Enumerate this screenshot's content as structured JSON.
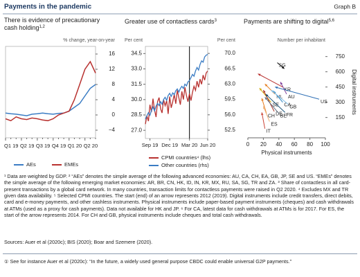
{
  "header": {
    "title": "Payments in the pandemic",
    "label": "Graph B"
  },
  "chart_data": [
    {
      "type": "line",
      "title": [
        "There is evidence of precautionary",
        "cash holding"
      ],
      "title_sup": "1,2",
      "subtitle": "% change, year-on-year",
      "categories": [
        "Q1 19",
        null,
        null,
        "Q2 19",
        null,
        null,
        "Q3 19",
        null,
        null,
        "Q4 19",
        null,
        null,
        "Q1 20",
        null,
        null,
        "Q2 20",
        null,
        null
      ],
      "series": [
        {
          "name": "AEs",
          "color": "#3a7cc4",
          "values": [
            0.5,
            0.3,
            0.2,
            0,
            -0.2,
            0.2,
            0.3,
            0.5,
            0.3,
            0.2,
            0.4,
            0.5,
            1,
            2,
            3,
            5,
            7,
            8
          ]
        },
        {
          "name": "EMEs",
          "color": "#b8312f",
          "values": [
            -1,
            -1.5,
            -0.5,
            -1,
            -1.2,
            -0.8,
            -1,
            -1.3,
            -1.5,
            -1,
            0,
            0.5,
            1,
            4,
            8,
            12,
            14,
            11
          ]
        }
      ],
      "ylim": [
        -6,
        18
      ],
      "yticks": [
        {
          "value": -4,
          "label": "−4"
        },
        0,
        4,
        8,
        12,
        16
      ]
    },
    {
      "type": "dual-line",
      "title": [
        "Greater use of contactless cards"
      ],
      "title_sup": "3",
      "ylabel": "Per cent",
      "y2label": "Per cent",
      "categories": [
        null,
        null,
        null,
        "Sep 19",
        null,
        null,
        null,
        null,
        null,
        null,
        null,
        null,
        null,
        null,
        null,
        null,
        "Dec 19",
        null,
        null,
        null,
        null,
        null,
        null,
        null,
        null,
        null,
        null,
        null,
        null,
        "Mar 20",
        null,
        null,
        null,
        null,
        null,
        null,
        null,
        null,
        null,
        null,
        null,
        "Jun 20"
      ],
      "vline": "Mar 20",
      "series": [
        {
          "name": "CPMI countries⁴ (lhs)",
          "color": "#b8312f",
          "values": [
            27.6,
            28.4,
            27.9,
            29.5,
            28.8,
            30.1,
            29.0,
            28.3,
            29.8,
            30.2,
            29.1,
            28.7,
            30.0,
            29.4,
            29.9,
            28.6,
            30.3,
            29.2,
            29.8,
            30.5,
            29.6,
            30.9,
            30.2,
            29.5,
            30.8,
            30.0,
            31.2,
            30.4,
            29.8,
            30.6,
            29.9,
            30.7,
            31.3,
            30.9,
            31.8,
            31.2,
            32.0,
            31.5,
            32.4,
            31.9,
            32.6,
            32.8
          ]
        },
        {
          "name": "Other countries (rhs)",
          "color": "#3a7cc4",
          "axis": "y2",
          "values": [
            55.0,
            55.8,
            56.5,
            55.9,
            57.0,
            57.8,
            56.9,
            58.0,
            58.6,
            58.1,
            59.0,
            58.4,
            59.5,
            60.0,
            59.3,
            60.4,
            60.9,
            60.2,
            61.0,
            60.6,
            61.5,
            61.9,
            61.2,
            62.0,
            62.5,
            62.0,
            63.0,
            62.6,
            63.5,
            63.8,
            64.5,
            65.2,
            64.8,
            66.0,
            66.8,
            66.2,
            67.5,
            68.3,
            68.0,
            69.2,
            69.6,
            69.8
          ]
        }
      ],
      "ylim": [
        26.2,
        35.2
      ],
      "yticks": [
        {
          "value": 27,
          "label": "27.0"
        },
        28.5,
        {
          "value": 30,
          "label": "30.0"
        },
        31.5,
        {
          "value": 33,
          "label": "33.0"
        },
        34.5
      ],
      "y2lim": [
        50.6,
        71.6
      ],
      "y2ticks": [
        52.5,
        {
          "value": 56,
          "label": "56.0"
        },
        59.5,
        {
          "value": 63,
          "label": "63.0"
        },
        66.5,
        {
          "value": 70,
          "label": "70.0"
        }
      ]
    },
    {
      "type": "arrows",
      "title": [
        "Payments are shifting to digital"
      ],
      "title_sup": "5,6",
      "subtitle": "Number per inhabitant",
      "xlabel": "Physical instruments",
      "ylabel": "Digital instruments",
      "xlim": [
        0,
        100
      ],
      "xticks": [
        0,
        20,
        40,
        60,
        80,
        100
      ],
      "ylim": [
        -50,
        850
      ],
      "yticks": [
        150,
        300,
        450,
        600,
        750
      ],
      "arrows": [
        {
          "label": "KR",
          "color": "#b8312f",
          "x": [
            45,
            13
          ],
          "y": [
            450,
            580
          ]
        },
        {
          "label": "SG",
          "color": "#000000",
          "x": [
            38,
            47
          ],
          "y": [
            690,
            630
          ]
        },
        {
          "label": "NL",
          "color": "#e67e22",
          "x": [
            35,
            22
          ],
          "y": [
            380,
            480
          ]
        },
        {
          "label": "AU",
          "color": "#7d3c98",
          "x": [
            50,
            42
          ],
          "y": [
            380,
            500
          ]
        },
        {
          "label": "SE",
          "color": "#d4ac0d",
          "x": [
            30,
            15
          ],
          "y": [
            300,
            440
          ]
        },
        {
          "label": "CA",
          "color": "#2e86c1",
          "x": [
            45,
            33
          ],
          "y": [
            300,
            410
          ]
        },
        {
          "label": "GB",
          "color": "#85c1e9",
          "x": [
            52,
            30
          ],
          "y": [
            280,
            420
          ]
        },
        {
          "label": "US",
          "color": "#2e6fb5",
          "x": [
            92,
            35
          ],
          "y": [
            330,
            450
          ]
        },
        {
          "label": "CH",
          "color": "#e67e22",
          "x": [
            24,
            18
          ],
          "y": [
            190,
            340
          ]
        },
        {
          "label": "DE",
          "color": "#a93226",
          "x": [
            34,
            20
          ],
          "y": [
            210,
            420
          ]
        },
        {
          "label": "BE",
          "color": "#5d6d7e",
          "x": [
            40,
            22
          ],
          "y": [
            190,
            350
          ]
        },
        {
          "label": "FR",
          "color": "#1a5276",
          "x": [
            48,
            23
          ],
          "y": [
            200,
            380
          ]
        },
        {
          "label": "ES",
          "color": "#f0b27a",
          "x": [
            28,
            20
          ],
          "y": [
            110,
            260
          ]
        },
        {
          "label": "IT",
          "color": "#cb4335",
          "x": [
            22,
            18
          ],
          "y": [
            40,
            200
          ]
        }
      ]
    }
  ],
  "footnotes": [
    "¹ Data are weighted by GDP.  ² “AEs” denotes the simple average of the following advanced economies: AU, CA, CH, EA, GB, JP, SE and US. “EMEs” denotes the simple average of the following emerging market economies: AR, BR, CN, HK, ID, IN, KR, MX, RU, SA, SG, TR and ZA.  ³ Share of contactless in all card-present transactions by a global card network. In many countries, transaction limits for contactless payments were raised in Q2 2020.  ⁴ Excludes MX and TR given data availability.  ⁵ Selected CPMI countries. The start (end) of an arrow represents 2012 (2019). Digital instruments include credit transfers, direct debits, card and e-money payments, and other cashless instruments. Physical instruments include paper-based payment instruments (cheques) and cash withdrawals at ATMs (used as a proxy for cash payments). Data not available for HK and JP.  ⁶ For CA, latest data for cash withdrawals at ATMs is for 2017. For ES, the start of the arrow represents 2014. For CH and GB, physical instruments include cheques and total cash withdrawals."
  ],
  "sources": "Sources: Auer et al (2020c); BIS (2020); Boar and Szemere (2020).",
  "box_note": "① See for instance Auer et al (2020c): “In the future, a widely used general purpose CBDC could enable universal G2P payments.”"
}
